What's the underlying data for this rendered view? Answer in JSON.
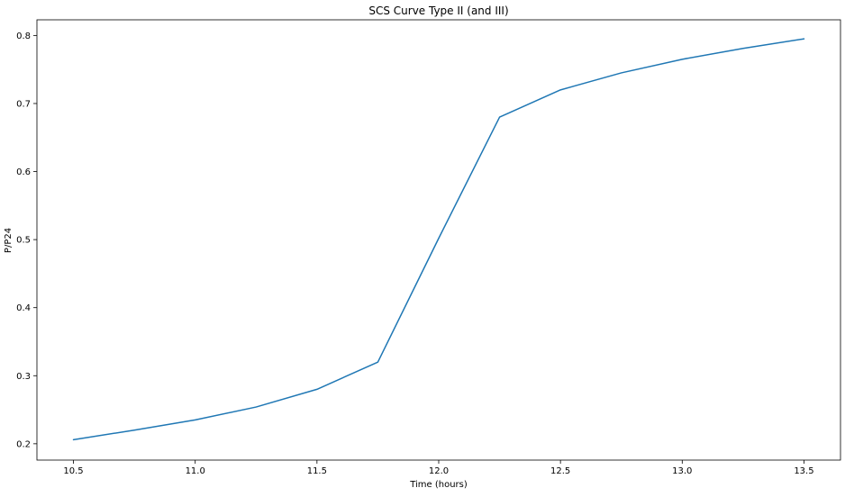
{
  "chart_data": {
    "type": "line",
    "title": "SCS Curve Type II (and III)",
    "xlabel": "Time (hours)",
    "ylabel": "P/P24",
    "xlim": [
      10.35,
      13.65
    ],
    "ylim": [
      0.176,
      0.823
    ],
    "xticks": [
      "10.5",
      "11.0",
      "11.5",
      "12.0",
      "12.5",
      "13.0",
      "13.5"
    ],
    "yticks": [
      "0.2",
      "0.3",
      "0.4",
      "0.5",
      "0.6",
      "0.7",
      "0.8"
    ],
    "grid": false,
    "line_color": "#1f77b4",
    "series": [
      {
        "x": [
          10.5,
          10.75,
          11.0,
          11.25,
          11.5,
          11.75,
          12.0,
          12.25,
          12.5,
          12.75,
          13.0,
          13.25,
          13.5
        ],
        "y": [
          0.206,
          0.22,
          0.235,
          0.254,
          0.28,
          0.32,
          0.502,
          0.68,
          0.72,
          0.745,
          0.765,
          0.781,
          0.795
        ]
      }
    ]
  }
}
